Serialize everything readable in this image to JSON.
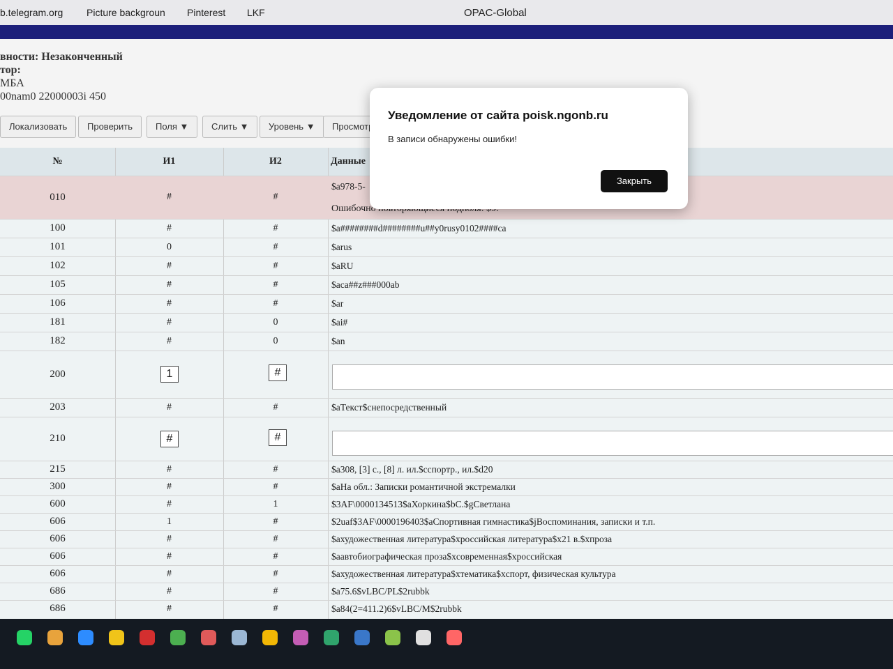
{
  "browser": {
    "bookmarks": [
      "b.telegram.org",
      "Picture backgroun",
      "Pinterest",
      "LKF"
    ],
    "window_title": "OPAC-Global"
  },
  "header": {
    "lines": [
      "вности: Незаконченный",
      "тор:",
      "МБА",
      "00nam0 22000003i 450"
    ]
  },
  "toolbar": {
    "buttons": [
      "Локализовать",
      "Проверить",
      "Поля ▼",
      "Слить ▼",
      "Уровень ▼",
      "Просмотр"
    ]
  },
  "table": {
    "columns": [
      "№",
      "И1",
      "И2",
      "Данные"
    ],
    "rows": [
      {
        "tag": "010",
        "i1": "#",
        "i2": "#",
        "data": "$a978-5-",
        "error": "Ошибочно повторяющиеся подполя: $9."
      },
      {
        "tag": "100",
        "i1": "#",
        "i2": "#",
        "data": "$a########d########u##y0rusy0102####ca"
      },
      {
        "tag": "101",
        "i1": "0",
        "i2": "#",
        "data": "$arus"
      },
      {
        "tag": "102",
        "i1": "#",
        "i2": "#",
        "data": "$aRU"
      },
      {
        "tag": "105",
        "i1": "#",
        "i2": "#",
        "data": "$aca##z###000ab"
      },
      {
        "tag": "106",
        "i1": "#",
        "i2": "#",
        "data": "$ar"
      },
      {
        "tag": "181",
        "i1": "#",
        "i2": "0",
        "data": "$ai#"
      },
      {
        "tag": "182",
        "i1": "#",
        "i2": "0",
        "data": "$an"
      },
      {
        "tag": "200",
        "i1": "1",
        "i2": "#",
        "editable": true
      },
      {
        "tag": "203",
        "i1": "#",
        "i2": "#",
        "data": "$aТекст$cнепосредственный"
      },
      {
        "tag": "210",
        "i1": "#",
        "i2": "#",
        "editable": true
      },
      {
        "tag": "215",
        "i1": "#",
        "i2": "#",
        "data": "$a308, [3] с., [8] л. ил.$cспортр., ил.$d20"
      },
      {
        "tag": "300",
        "i1": "#",
        "i2": "#",
        "data": "$aНа обл.: Записки романтичной экстремалки"
      },
      {
        "tag": "600",
        "i1": "#",
        "i2": "1",
        "data": "$3AF\\0000134513$aХоркина$bС.$gСветлана"
      },
      {
        "tag": "606",
        "i1": "1",
        "i2": "#",
        "data": "$2uaf$3AF\\0000196403$aСпортивная гимнастика$jВоспоминания, записки и т.п."
      },
      {
        "tag": "606",
        "i1": "#",
        "i2": "#",
        "data": "$aхудожественная литература$xроссийская литература$x21 в.$xпроза"
      },
      {
        "tag": "606",
        "i1": "#",
        "i2": "#",
        "data": "$aавтобиографическая проза$xсовременная$xроссийская"
      },
      {
        "tag": "606",
        "i1": "#",
        "i2": "#",
        "data": "$aхудожественная литература$xтематика$xспорт, физическая культура"
      },
      {
        "tag": "686",
        "i1": "#",
        "i2": "#",
        "data": "$a75.6$vLBC/PL$2rubbk"
      },
      {
        "tag": "686",
        "i1": "#",
        "i2": "#",
        "data": "$a84(2=411.2)6$vLBC/M$2rubbk"
      }
    ]
  },
  "dialog": {
    "title": "Уведомление от сайта poisk.ngonb.ru",
    "message": "В записи обнаружены ошибки!",
    "button": "Закрыть"
  }
}
